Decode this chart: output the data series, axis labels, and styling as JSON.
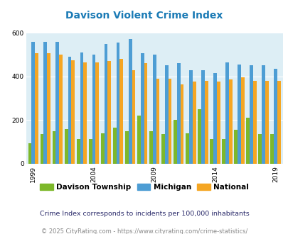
{
  "title": "Davison Violent Crime Index",
  "title_color": "#1a7ab5",
  "years": [
    1999,
    2000,
    2001,
    2002,
    2003,
    2004,
    2005,
    2006,
    2007,
    2008,
    2009,
    2010,
    2011,
    2012,
    2013,
    2014,
    2015,
    2016,
    2017,
    2018,
    2019
  ],
  "davison": [
    95,
    135,
    150,
    160,
    115,
    115,
    140,
    165,
    150,
    220,
    150,
    135,
    200,
    140,
    250,
    115,
    115,
    155,
    210,
    135,
    135
  ],
  "michigan": [
    560,
    560,
    560,
    490,
    510,
    500,
    550,
    555,
    570,
    505,
    500,
    450,
    460,
    430,
    430,
    415,
    465,
    455,
    450,
    450,
    435
  ],
  "national": [
    505,
    505,
    500,
    475,
    465,
    465,
    470,
    480,
    430,
    460,
    390,
    390,
    365,
    375,
    380,
    375,
    385,
    395,
    380,
    380,
    380
  ],
  "bar_colors": {
    "davison": "#7db82b",
    "michigan": "#4d9dd4",
    "national": "#f5a623"
  },
  "bg_color": "#ddeef5",
  "ylim": [
    0,
    600
  ],
  "yticks": [
    0,
    200,
    400,
    600
  ],
  "xlabel_ticks": [
    1999,
    2004,
    2009,
    2014,
    2019
  ],
  "legend_labels": [
    "Davison Township",
    "Michigan",
    "National"
  ],
  "footnote1": "Crime Index corresponds to incidents per 100,000 inhabitants",
  "footnote2": "© 2025 CityRating.com - https://www.cityrating.com/crime-statistics/",
  "footnote1_color": "#2a2a6a",
  "footnote2_color": "#888888"
}
